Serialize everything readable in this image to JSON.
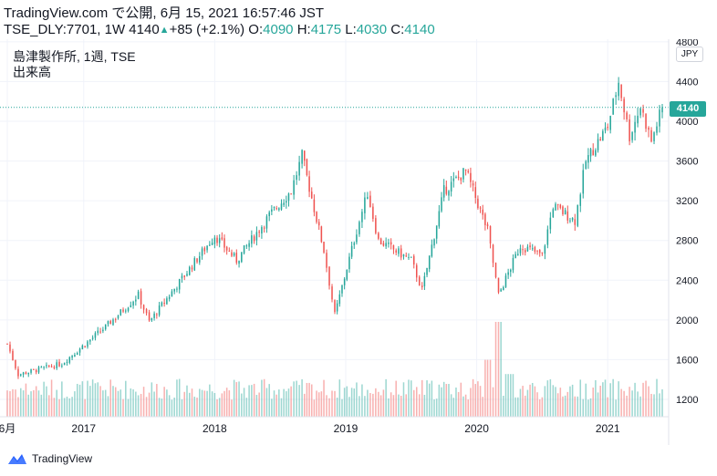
{
  "header": {
    "line1": "TradingView.com で公開, 6月 15, 2021 16:57:46 JST",
    "symbol_info": "TSE_DLY:7701, 1W 4140",
    "change": "+85 (+2.1%)",
    "o_label": "O:",
    "o_value": "4090",
    "h_label": "H:",
    "h_value": "4175",
    "l_label": "L:",
    "l_value": "4030",
    "c_label": "C:",
    "c_value": "4140"
  },
  "legend": {
    "title": "島津製作所, 1週, TSE",
    "volume_label": "出来高"
  },
  "price_scale": {
    "currency": "JPY",
    "last_price": "4140"
  },
  "footer": {
    "brand": "TradingView"
  },
  "colors": {
    "up": "#26a69a",
    "down": "#ef5350",
    "grid": "#f0f3fa",
    "text": "#131722"
  },
  "icons": {
    "trend_up_marker": "triangle-up-icon",
    "logo": "tradingview-logo-icon"
  },
  "chart_data": {
    "type": "candlestick",
    "title": "島津製作所, 1週, TSE",
    "interval": "1W",
    "y_axis": {
      "ticks": [
        1200,
        1600,
        2000,
        2400,
        2800,
        3200,
        3600,
        4000,
        4400,
        4800
      ],
      "ylim": [
        1050,
        4800
      ],
      "position": "right"
    },
    "x_axis": {
      "labels": [
        "6月",
        "2017",
        "2018",
        "2019",
        "2020",
        "2021"
      ]
    },
    "last": {
      "open": 4090,
      "high": 4175,
      "low": 4030,
      "close": 4140,
      "change": 85,
      "change_pct": 2.1
    },
    "key_points": [
      {
        "date": "2016-06",
        "close": 1760
      },
      {
        "date": "2016-07",
        "close": 1450
      },
      {
        "date": "2016-11",
        "close": 1560
      },
      {
        "date": "2017-03",
        "close": 1930
      },
      {
        "date": "2017-06",
        "close": 2250
      },
      {
        "date": "2017-07",
        "close": 1980
      },
      {
        "date": "2018-01",
        "close": 2850
      },
      {
        "date": "2018-03",
        "close": 2600
      },
      {
        "date": "2018-06",
        "close": 3050
      },
      {
        "date": "2018-08",
        "close": 3300
      },
      {
        "date": "2018-09",
        "close": 3650
      },
      {
        "date": "2018-11",
        "close": 2700
      },
      {
        "date": "2018-12",
        "close": 2050
      },
      {
        "date": "2019-02",
        "close": 2900
      },
      {
        "date": "2019-03",
        "close": 3280
      },
      {
        "date": "2019-04",
        "close": 2800
      },
      {
        "date": "2019-07",
        "close": 2600
      },
      {
        "date": "2019-08",
        "close": 2300
      },
      {
        "date": "2019-10",
        "close": 3300
      },
      {
        "date": "2019-12",
        "close": 3500
      },
      {
        "date": "2020-02",
        "close": 2900
      },
      {
        "date": "2020-03",
        "close": 2250
      },
      {
        "date": "2020-05",
        "close": 2750
      },
      {
        "date": "2020-07",
        "close": 2650
      },
      {
        "date": "2020-08",
        "close": 3150
      },
      {
        "date": "2020-10",
        "close": 3000
      },
      {
        "date": "2020-11",
        "close": 3600
      },
      {
        "date": "2021-01",
        "close": 3950
      },
      {
        "date": "2021-02",
        "close": 4400
      },
      {
        "date": "2021-03",
        "close": 3850
      },
      {
        "date": "2021-04",
        "close": 4150
      },
      {
        "date": "2021-05",
        "close": 3800
      },
      {
        "date": "2021-06",
        "close": 4140
      }
    ],
    "volume_spikes": [
      {
        "date": "2020-02",
        "relative": 0.6
      },
      {
        "date": "2020-03",
        "relative": 1.0
      },
      {
        "date": "2020-04",
        "relative": 0.45
      }
    ],
    "grid": true,
    "legend_position": "top-left"
  }
}
